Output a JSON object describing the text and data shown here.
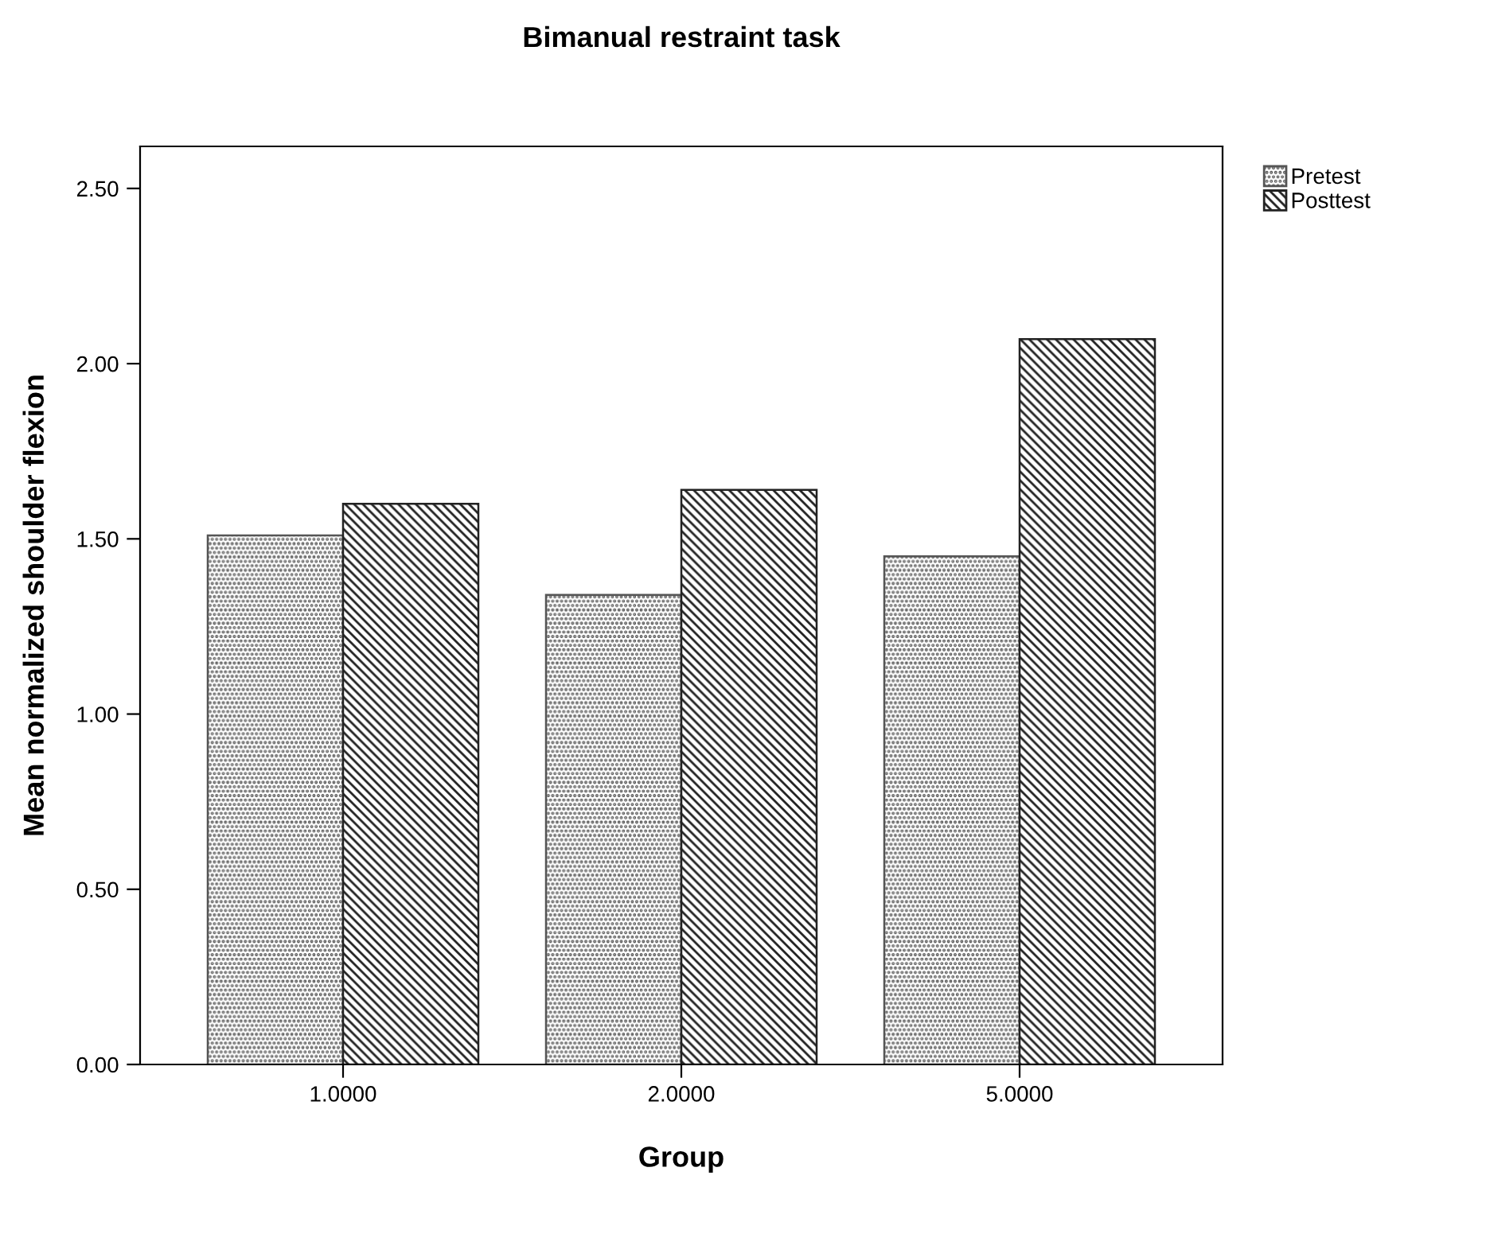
{
  "chart_data": {
    "type": "bar",
    "title": "Bimanual restraint task",
    "xlabel": "Group",
    "ylabel": "Mean normalized shoulder flexion",
    "categories": [
      "1.0000",
      "2.0000",
      "5.0000"
    ],
    "series": [
      {
        "name": "Pretest",
        "color": "#555555",
        "values": [
          1.51,
          1.34,
          1.45
        ]
      },
      {
        "name": "Posttest",
        "color": "#222222",
        "values": [
          1.6,
          1.64,
          2.07
        ]
      }
    ],
    "ylim": [
      0,
      2.62
    ],
    "yticks": [
      {
        "value": 0,
        "label": "0.00"
      },
      {
        "value": 0.5,
        "label": "0.50"
      },
      {
        "value": 1.0,
        "label": "1.00"
      },
      {
        "value": 1.5,
        "label": "1.50"
      },
      {
        "value": 2.0,
        "label": "2.00"
      },
      {
        "value": 2.5,
        "label": "2.50"
      }
    ],
    "grid": false,
    "legend": "top right"
  }
}
